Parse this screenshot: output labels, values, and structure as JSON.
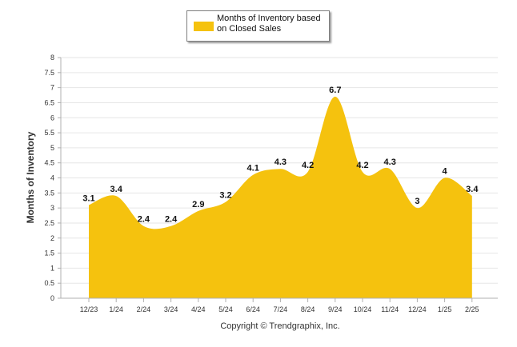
{
  "colors": {
    "area": "#F5C20E",
    "grid": "#e6e6e6",
    "axis": "#b0b0b0"
  },
  "legend": {
    "label": "Months of Inventory based on Closed Sales",
    "swatch_color": "#F5C20E"
  },
  "footer": {
    "copyright": "Copyright © Trendgraphix, Inc."
  },
  "chart_data": {
    "type": "area",
    "categories": [
      "12/23",
      "1/24",
      "2/24",
      "3/24",
      "4/24",
      "5/24",
      "6/24",
      "7/24",
      "8/24",
      "9/24",
      "10/24",
      "11/24",
      "12/24",
      "1/25",
      "2/25"
    ],
    "series": [
      {
        "name": "Months of Inventory based on Closed Sales",
        "values": [
          3.1,
          3.4,
          2.4,
          2.4,
          2.9,
          3.2,
          4.1,
          4.3,
          4.2,
          6.7,
          4.2,
          4.3,
          3,
          4,
          3.4
        ],
        "labels": [
          "3.1",
          "3.4",
          "2.4",
          "2.4",
          "2.9",
          "3.2",
          "4.1",
          "4.3",
          "4.2",
          "6.7",
          "4.2",
          "4.3",
          "3",
          "4",
          "3.4"
        ]
      }
    ],
    "ylabel": "Months of Inventory",
    "ylim": [
      0,
      8
    ],
    "yticks": [
      "0",
      "0.5",
      "1",
      "1.5",
      "2",
      "2.5",
      "3",
      "3.5",
      "4",
      "4.5",
      "5",
      "5.5",
      "6",
      "6.5",
      "7",
      "7.5",
      "8"
    ],
    "grid": true,
    "legend_position": "top-center"
  }
}
